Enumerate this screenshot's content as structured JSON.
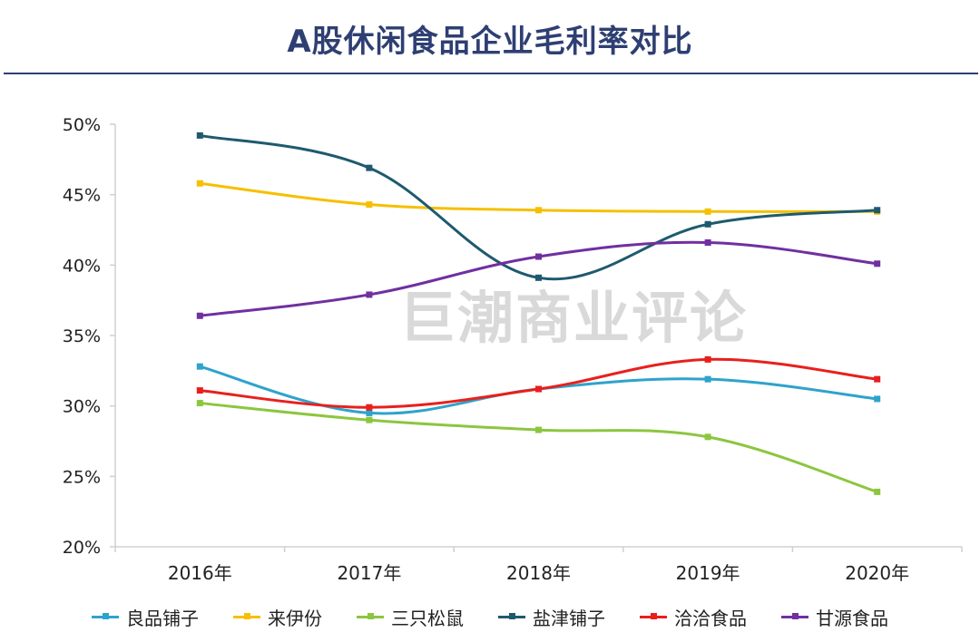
{
  "header": {
    "title": "A股休闲食品企业毛利率对比"
  },
  "watermark": "巨潮商业评论",
  "chart_data": {
    "type": "line",
    "title": "A股休闲食品企业毛利率对比",
    "categories": [
      "2016年",
      "2017年",
      "2018年",
      "2019年",
      "2020年"
    ],
    "ylim": [
      20,
      50
    ],
    "yticks": [
      20,
      25,
      30,
      35,
      40,
      45,
      50
    ],
    "ytick_labels": [
      "20%",
      "25%",
      "30%",
      "35%",
      "40%",
      "45%",
      "50%"
    ],
    "grid": false,
    "legend_position": "bottom",
    "series": [
      {
        "name": "良品铺子",
        "color": "#2ea3cc",
        "values": [
          32.8,
          29.5,
          31.2,
          31.9,
          30.5
        ]
      },
      {
        "name": "来伊份",
        "color": "#f5c000",
        "values": [
          45.8,
          44.3,
          43.9,
          43.8,
          43.8
        ]
      },
      {
        "name": "三只松鼠",
        "color": "#8cc63f",
        "values": [
          30.2,
          29.0,
          28.3,
          27.8,
          23.9
        ]
      },
      {
        "name": "盐津铺子",
        "color": "#1e5a6e",
        "values": [
          49.2,
          46.9,
          39.1,
          42.9,
          43.9
        ]
      },
      {
        "name": "洽洽食品",
        "color": "#e8201c",
        "values": [
          31.1,
          29.9,
          31.2,
          33.3,
          31.9
        ]
      },
      {
        "name": "甘源食品",
        "color": "#7030a0",
        "values": [
          36.4,
          37.9,
          40.6,
          41.6,
          40.1
        ]
      }
    ]
  }
}
